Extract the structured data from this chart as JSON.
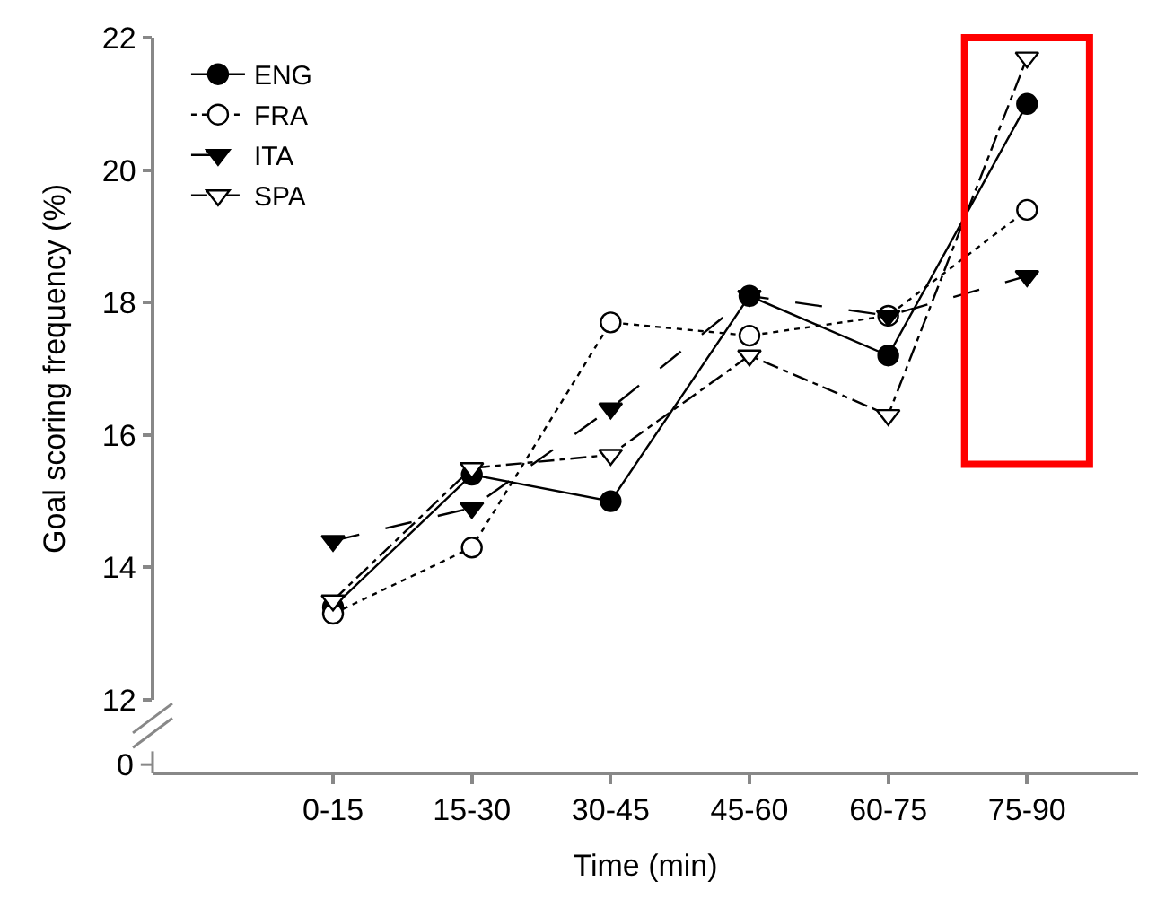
{
  "chart_data": {
    "type": "line",
    "xlabel": "Time (min)",
    "ylabel": "Goal scoring frequency (%)",
    "categories": [
      "0-15",
      "15-30",
      "30-45",
      "45-60",
      "60-75",
      "75-90"
    ],
    "series": [
      {
        "name": "ENG",
        "color": "#000000",
        "marker": "circle",
        "line_style": "solid",
        "values": [
          13.4,
          15.4,
          15.0,
          18.1,
          17.2,
          21.0
        ]
      },
      {
        "name": "FRA",
        "color": "#000000",
        "marker": "circle-open",
        "line_style": "dotted",
        "values": [
          13.3,
          14.3,
          17.7,
          17.5,
          17.8,
          19.4
        ]
      },
      {
        "name": "ITA",
        "color": "#000000",
        "marker": "triangle",
        "line_style": "dashed",
        "values": [
          14.4,
          14.9,
          16.4,
          18.1,
          17.8,
          18.4
        ]
      },
      {
        "name": "SPA",
        "color": "#000000",
        "marker": "triangle-open",
        "line_style": "dashdot",
        "values": [
          13.5,
          15.5,
          15.7,
          17.2,
          16.3,
          21.7
        ]
      }
    ],
    "ylim": [
      12,
      22
    ],
    "yticks": [
      12,
      14,
      16,
      18,
      20,
      22
    ],
    "annotations": [
      "0"
    ],
    "legend": "top left"
  }
}
